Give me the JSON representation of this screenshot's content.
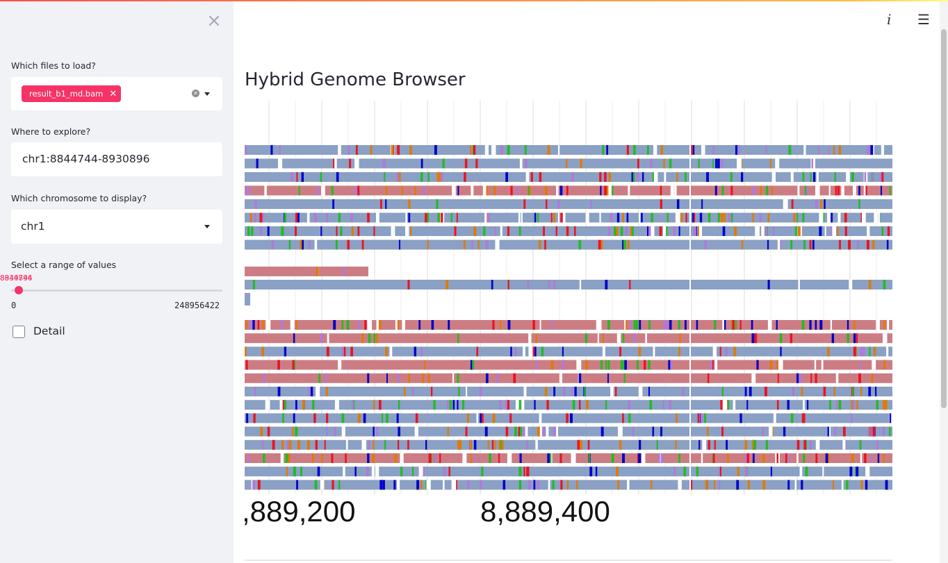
{
  "sidebar": {
    "close_icon": "close-icon",
    "files_label": "Which files to load?",
    "files_selected": [
      "result_b1_md.bam"
    ],
    "explore_label": "Where to explore?",
    "explore_value": "chr1:8844744-8930896",
    "chrom_label": "Which chromosome to display?",
    "chrom_value": "chr1",
    "range_label": "Select a range of values",
    "range_value_a": "8844744",
    "range_value_b": "8930896",
    "range_min": "0",
    "range_max": "248956422",
    "detail_label": "Detail",
    "detail_checked": false
  },
  "header": {
    "info_icon": "info-icon",
    "menu_icon": "hamburger-menu-icon"
  },
  "main": {
    "title": "Hybrid Genome Browser"
  },
  "genome_view": {
    "axis_labels": [
      ",889,200",
      "8,889,400"
    ],
    "colors": {
      "forward_read": "#8aa0c4",
      "reverse_read": "#cc7d84",
      "mismatch_A": "#22bb22",
      "mismatch_C": "#0000cc",
      "mismatch_G": "#e07b00",
      "mismatch_T": "#ee1122",
      "deletion": "#ffffff",
      "insertion": "#b07ad8"
    }
  }
}
